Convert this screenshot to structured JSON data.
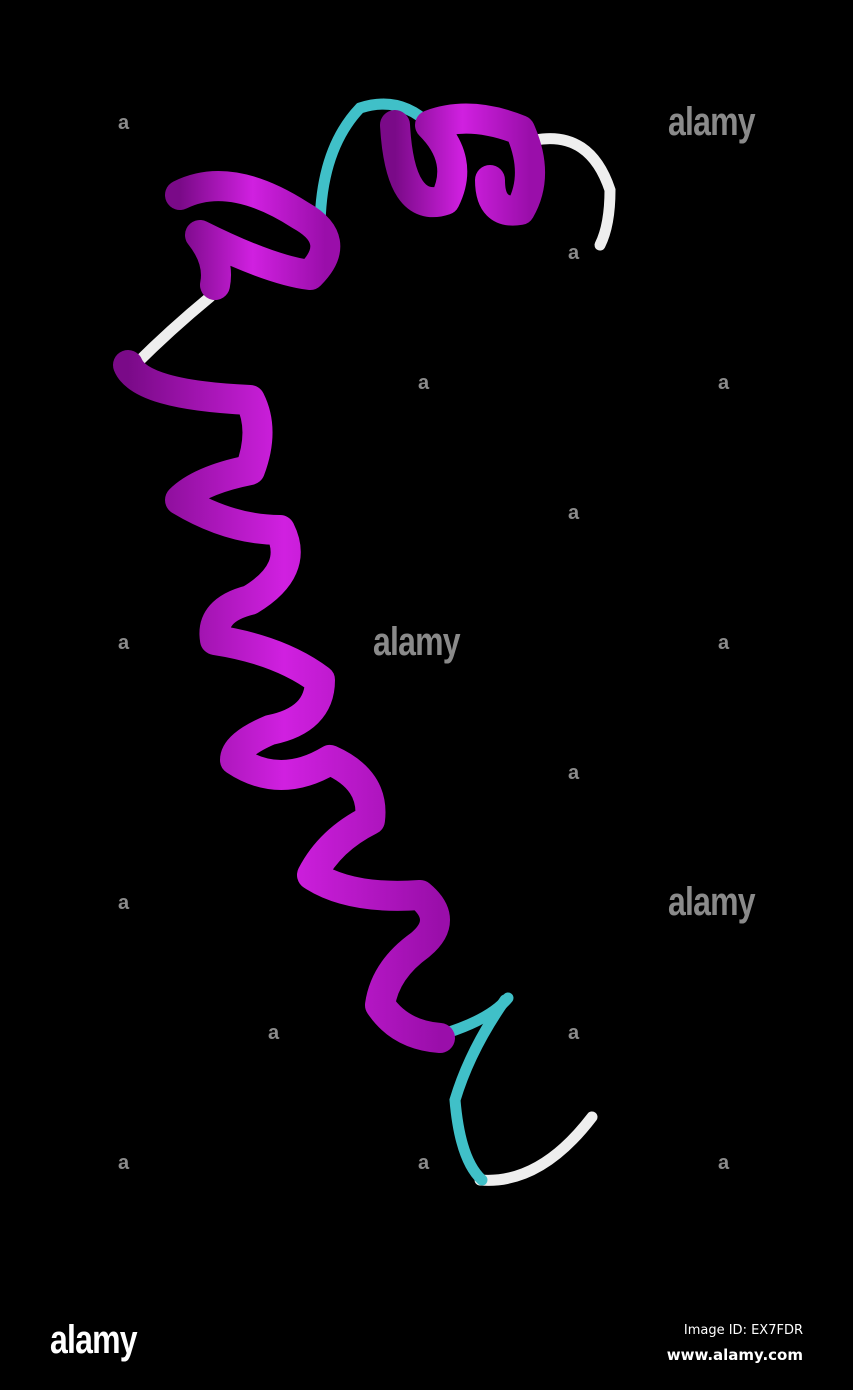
{
  "image": {
    "subject": "protein-ribbon-helix",
    "colors": {
      "background": "#000000",
      "helix": "#b010c0",
      "turn": "#40c0c8",
      "coil": "#f0f0f0"
    }
  },
  "watermark": {
    "text": "alamy",
    "letter": "a"
  },
  "footer": {
    "brand": "alamy",
    "image_id": "Image ID: EX7FDR",
    "url": "www.alamy.com"
  }
}
